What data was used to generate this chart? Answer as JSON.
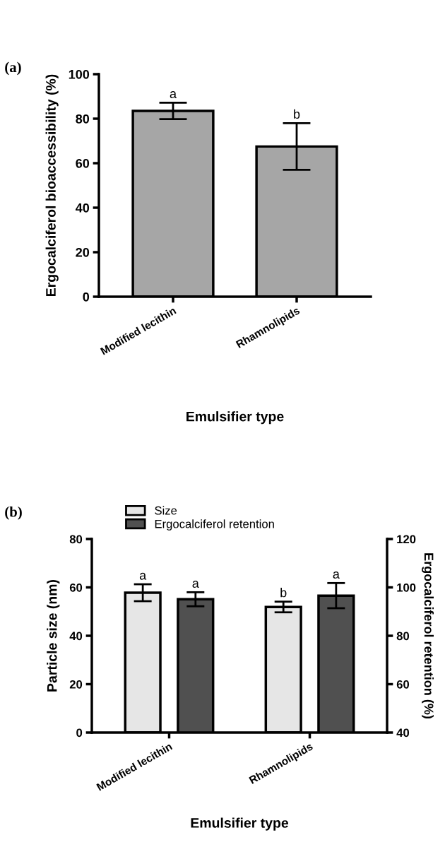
{
  "chart_data": [
    {
      "type": "bar",
      "title": "(a)",
      "xlabel": "Emulsifier type",
      "ylabel": "Ergocalciferol bioaccessibility (%)",
      "categories": [
        "Modified lecithin",
        "Rhamnolipids"
      ],
      "ylim": [
        0,
        100
      ],
      "yticks": [
        0,
        20,
        40,
        60,
        80,
        100
      ],
      "grid": false,
      "legend": false,
      "series": [
        {
          "color": "#a6a6a6",
          "values": [
            83.5,
            67.5
          ],
          "errors": [
            3.7,
            10.5
          ],
          "value_labels": [
            "a",
            "b"
          ]
        }
      ]
    },
    {
      "type": "bar",
      "title": "(b)",
      "xlabel": "Emulsifier type",
      "ylabel": "Particle size (nm)",
      "y2label": "Ergocalciferol retention (%)",
      "categories": [
        "Modified lecithin",
        "Rhamnolipids"
      ],
      "ylim": [
        0,
        80
      ],
      "yticks": [
        0,
        20,
        40,
        60,
        80
      ],
      "y2lim": [
        40,
        120
      ],
      "y2ticks": [
        40,
        60,
        80,
        100,
        120
      ],
      "grid": false,
      "legend": "top left",
      "series": [
        {
          "name": "Size",
          "color": "#e6e6e6",
          "values": [
            57.8,
            51.9
          ],
          "errors": [
            3.5,
            2.2
          ],
          "value_labels": [
            "a",
            "b"
          ]
        },
        {
          "name": "Ergocalciferol retention",
          "color": "#505050",
          "axis": "y2",
          "values": [
            95.1,
            96.6
          ],
          "errors": [
            2.9,
            5.2
          ],
          "value_labels": [
            "a",
            "a"
          ]
        }
      ]
    }
  ]
}
